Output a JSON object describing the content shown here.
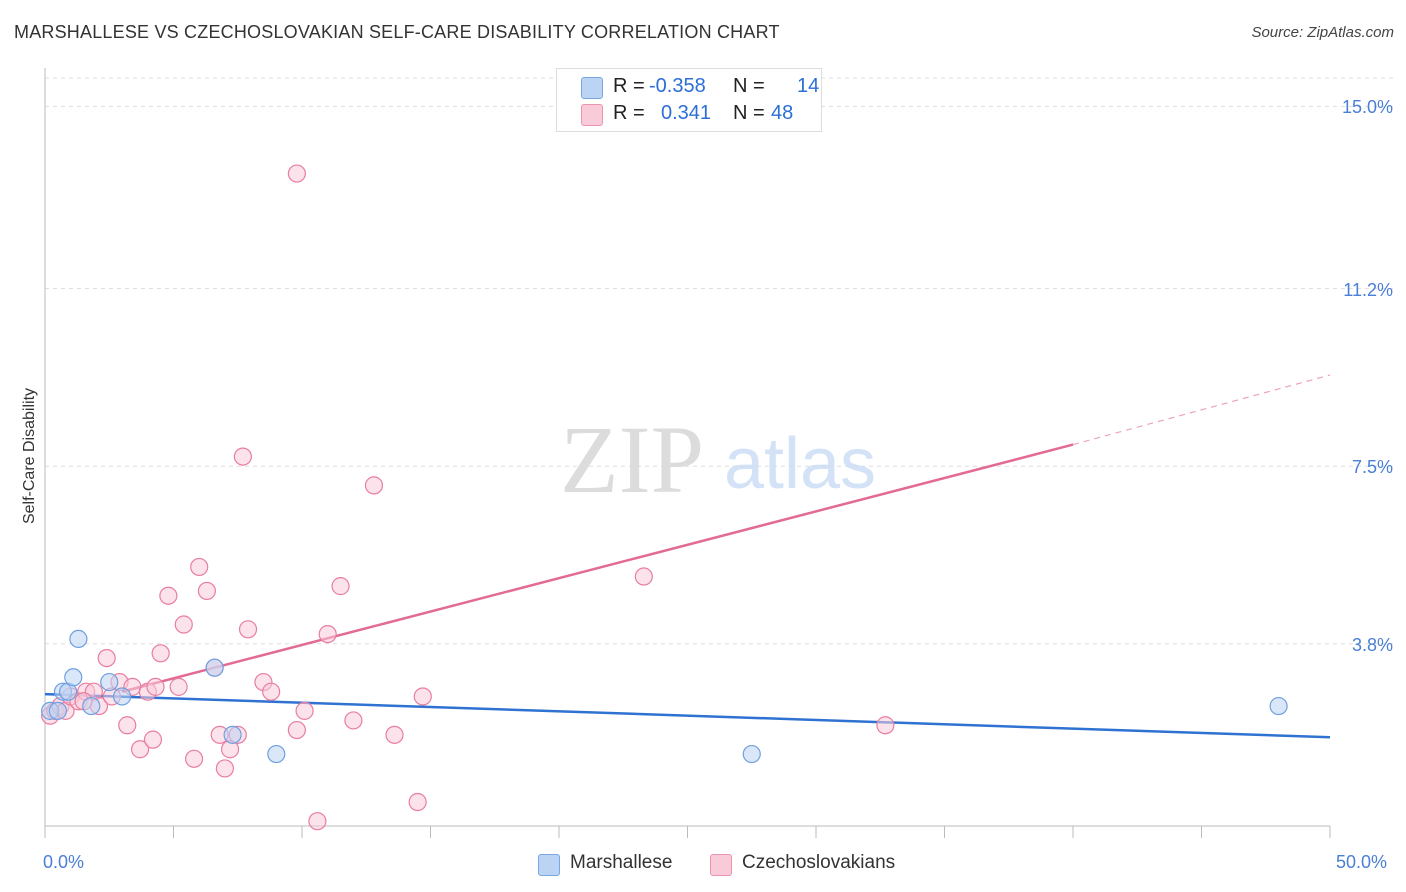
{
  "header": {
    "title": "MARSHALLESE VS CZECHOSLOVAKIAN SELF-CARE DISABILITY CORRELATION CHART",
    "source": "Source: ZipAtlas.com"
  },
  "watermark": {
    "zip": "ZIP",
    "atlas": "atlas"
  },
  "legend": {
    "rows": [
      {
        "r_label": "R =",
        "r_value": "-0.358",
        "n_label": "N =",
        "n_value": "14",
        "color": "#a9c8f0"
      },
      {
        "r_label": "R =",
        "r_value": "0.341",
        "n_label": "N =",
        "n_value": "48",
        "color": "#f6b8cb"
      }
    ]
  },
  "bottom_legend": {
    "items": [
      {
        "label": "Marshallese",
        "color": "#a9c8f0"
      },
      {
        "label": "Czechoslovakians",
        "color": "#f6b8cb"
      }
    ]
  },
  "chart_data": {
    "type": "scatter",
    "title": "MARSHALLESE VS CZECHOSLOVAKIAN SELF-CARE DISABILITY CORRELATION CHART",
    "xlabel": "",
    "ylabel": "Self-Care Disability",
    "xlim": [
      0,
      50
    ],
    "ylim": [
      0,
      15.8
    ],
    "x_tick_labels": [
      "0.0%",
      "50.0%"
    ],
    "y_ticks": [
      3.8,
      7.5,
      11.2,
      15.0
    ],
    "y_tick_labels": [
      "3.8%",
      "7.5%",
      "11.2%",
      "15.0%"
    ],
    "grid": true,
    "series": [
      {
        "name": "Marshallese",
        "color": "#6fa0e0",
        "fill": "#bcd4f4",
        "points": [
          {
            "x": 0.2,
            "y": 2.4
          },
          {
            "x": 0.5,
            "y": 2.4
          },
          {
            "x": 0.7,
            "y": 2.8
          },
          {
            "x": 0.9,
            "y": 2.8
          },
          {
            "x": 1.1,
            "y": 3.1
          },
          {
            "x": 1.3,
            "y": 3.9
          },
          {
            "x": 1.8,
            "y": 2.5
          },
          {
            "x": 2.5,
            "y": 3.0
          },
          {
            "x": 3.0,
            "y": 2.7
          },
          {
            "x": 6.6,
            "y": 3.3
          },
          {
            "x": 7.3,
            "y": 1.9
          },
          {
            "x": 9.0,
            "y": 1.5
          },
          {
            "x": 27.5,
            "y": 1.5
          },
          {
            "x": 48.0,
            "y": 2.5
          }
        ],
        "trend": {
          "x1": 0,
          "y1": 2.75,
          "x2": 50,
          "y2": 1.85
        }
      },
      {
        "name": "Czechoslovakians",
        "color": "#e87ea0",
        "fill": "#f9cbd9",
        "points": [
          {
            "x": 0.2,
            "y": 2.3
          },
          {
            "x": 0.4,
            "y": 2.4
          },
          {
            "x": 0.6,
            "y": 2.5
          },
          {
            "x": 0.8,
            "y": 2.4
          },
          {
            "x": 1.0,
            "y": 2.7
          },
          {
            "x": 1.3,
            "y": 2.6
          },
          {
            "x": 1.6,
            "y": 2.8
          },
          {
            "x": 1.9,
            "y": 2.8
          },
          {
            "x": 2.1,
            "y": 2.5
          },
          {
            "x": 2.4,
            "y": 3.5
          },
          {
            "x": 2.6,
            "y": 2.7
          },
          {
            "x": 2.9,
            "y": 3.0
          },
          {
            "x": 3.2,
            "y": 2.1
          },
          {
            "x": 3.4,
            "y": 2.9
          },
          {
            "x": 3.7,
            "y": 1.6
          },
          {
            "x": 4.0,
            "y": 2.8
          },
          {
            "x": 4.3,
            "y": 2.9
          },
          {
            "x": 4.2,
            "y": 1.8
          },
          {
            "x": 4.5,
            "y": 3.6
          },
          {
            "x": 4.8,
            "y": 4.8
          },
          {
            "x": 5.2,
            "y": 2.9
          },
          {
            "x": 5.4,
            "y": 4.2
          },
          {
            "x": 5.8,
            "y": 1.4
          },
          {
            "x": 6.0,
            "y": 5.4
          },
          {
            "x": 6.3,
            "y": 4.9
          },
          {
            "x": 6.6,
            "y": 3.3
          },
          {
            "x": 6.8,
            "y": 1.9
          },
          {
            "x": 7.0,
            "y": 1.2
          },
          {
            "x": 7.2,
            "y": 1.6
          },
          {
            "x": 7.5,
            "y": 1.9
          },
          {
            "x": 7.7,
            "y": 7.7
          },
          {
            "x": 7.9,
            "y": 4.1
          },
          {
            "x": 8.5,
            "y": 3.0
          },
          {
            "x": 8.8,
            "y": 2.8
          },
          {
            "x": 9.8,
            "y": 13.6
          },
          {
            "x": 9.8,
            "y": 2.0
          },
          {
            "x": 10.1,
            "y": 2.4
          },
          {
            "x": 10.6,
            "y": 0.1
          },
          {
            "x": 11.0,
            "y": 4.0
          },
          {
            "x": 11.5,
            "y": 5.0
          },
          {
            "x": 12.0,
            "y": 2.2
          },
          {
            "x": 12.8,
            "y": 7.1
          },
          {
            "x": 13.6,
            "y": 1.9
          },
          {
            "x": 14.5,
            "y": 0.5
          },
          {
            "x": 14.7,
            "y": 2.7
          },
          {
            "x": 23.3,
            "y": 5.2
          },
          {
            "x": 32.7,
            "y": 2.1
          },
          {
            "x": 1.5,
            "y": 2.6
          }
        ],
        "trend": {
          "x1": 3.0,
          "y1": 2.8,
          "x2": 40.0,
          "y2": 7.95
        },
        "trend_extension": {
          "x1": 40.0,
          "y1": 7.95,
          "x2": 50.0,
          "y2": 9.4
        }
      }
    ]
  }
}
